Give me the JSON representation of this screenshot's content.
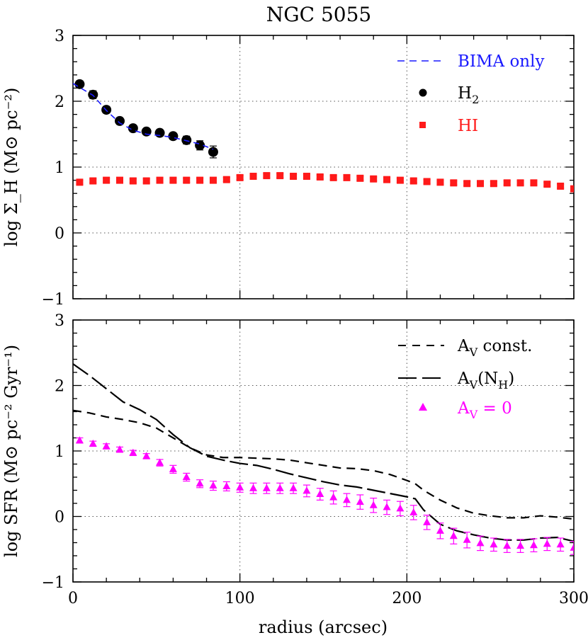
{
  "title": "NGC 5055",
  "xlabel": "radius (arcsec)",
  "colors": {
    "bima": "#1a1aff",
    "h2": "#000000",
    "hi": "#ff1a1a",
    "sfr_av0": "#ff00ff",
    "lines": "#000000"
  },
  "chart_data": [
    {
      "type": "scatter",
      "panel": "top",
      "ylabel": "log Σ_H (M⊙ pc⁻²)",
      "xlim": [
        0,
        300
      ],
      "ylim": [
        -1,
        3
      ],
      "x_ticks": [
        0,
        100,
        200,
        300
      ],
      "y_ticks": [
        -1,
        0,
        1,
        2,
        3
      ],
      "grid": "dotted at x=100,200 and y=0,1,2",
      "legend_position": "top-right",
      "legend": [
        {
          "key": "bima",
          "label": "BIMA only",
          "marker": "dashed-line"
        },
        {
          "key": "h2",
          "label": "H",
          "sub": "2",
          "marker": "circle"
        },
        {
          "key": "hi",
          "label": "HI",
          "marker": "square"
        }
      ],
      "series": [
        {
          "name": "H2",
          "marker": "circle",
          "x": [
            4,
            12,
            20,
            28,
            36,
            44,
            52,
            60,
            68,
            76,
            84
          ],
          "y": [
            2.26,
            2.1,
            1.87,
            1.7,
            1.59,
            1.54,
            1.52,
            1.47,
            1.41,
            1.33,
            1.23
          ],
          "err": [
            0.05,
            0.06,
            0.05,
            0.05,
            0.04,
            0.04,
            0.05,
            0.05,
            0.06,
            0.07,
            0.09
          ]
        },
        {
          "name": "BIMA only",
          "style": "dashed",
          "x": [
            0,
            12,
            20,
            28,
            36,
            44,
            52,
            60,
            68,
            76,
            84
          ],
          "y": [
            2.27,
            2.09,
            1.86,
            1.67,
            1.56,
            1.5,
            1.48,
            1.45,
            1.4,
            1.35,
            1.27
          ]
        },
        {
          "name": "HI",
          "marker": "square",
          "x": [
            4,
            12,
            20,
            28,
            36,
            44,
            52,
            60,
            68,
            76,
            84,
            92,
            100,
            108,
            116,
            124,
            132,
            140,
            148,
            156,
            164,
            172,
            180,
            188,
            196,
            204,
            212,
            220,
            228,
            236,
            244,
            252,
            260,
            268,
            276,
            284,
            292,
            300
          ],
          "y": [
            0.77,
            0.79,
            0.8,
            0.8,
            0.79,
            0.79,
            0.8,
            0.8,
            0.8,
            0.8,
            0.8,
            0.81,
            0.84,
            0.86,
            0.87,
            0.87,
            0.86,
            0.86,
            0.85,
            0.84,
            0.84,
            0.83,
            0.82,
            0.81,
            0.8,
            0.79,
            0.78,
            0.77,
            0.76,
            0.75,
            0.75,
            0.75,
            0.76,
            0.76,
            0.76,
            0.74,
            0.71,
            0.67
          ],
          "err": 0.03
        }
      ]
    },
    {
      "type": "line",
      "panel": "bottom",
      "ylabel": "log SFR (M⊙ pc⁻² Gyr⁻¹)",
      "xlim": [
        0,
        300
      ],
      "ylim": [
        -1,
        3
      ],
      "x_ticks": [
        0,
        100,
        200,
        300
      ],
      "y_ticks": [
        -1,
        0,
        1,
        2,
        3
      ],
      "grid": "dotted at x=100,200 and y=0,1,2",
      "legend_position": "top-right",
      "legend": [
        {
          "key": "av_const",
          "label": "A",
          "sub": "V",
          "tail": " const.",
          "marker": "short-dashed-line"
        },
        {
          "key": "av_nh",
          "label": "A",
          "sub": "V",
          "tail": "(N",
          "sub2": "H",
          "tail2": ")",
          "marker": "long-dashed-line"
        },
        {
          "key": "av0",
          "label": "A",
          "sub": "V",
          "tail": " = 0",
          "marker": "triangle"
        }
      ],
      "series": [
        {
          "name": "AV const.",
          "style": "short-dash",
          "x": [
            0,
            10,
            20,
            30,
            40,
            50,
            60,
            70,
            80,
            90,
            100,
            110,
            120,
            130,
            140,
            150,
            160,
            170,
            180,
            190,
            200,
            205,
            210,
            220,
            230,
            240,
            250,
            260,
            270,
            280,
            290,
            300
          ],
          "y": [
            1.62,
            1.58,
            1.52,
            1.48,
            1.43,
            1.35,
            1.2,
            1.05,
            0.94,
            0.9,
            0.9,
            0.89,
            0.88,
            0.86,
            0.82,
            0.78,
            0.74,
            0.73,
            0.7,
            0.64,
            0.55,
            0.5,
            0.4,
            0.25,
            0.13,
            0.05,
            0.01,
            -0.02,
            -0.02,
            0.01,
            -0.01,
            -0.04
          ]
        },
        {
          "name": "AV(NH)",
          "style": "long-dash",
          "x": [
            0,
            10,
            20,
            30,
            40,
            50,
            60,
            70,
            80,
            90,
            100,
            110,
            120,
            130,
            140,
            150,
            160,
            170,
            180,
            190,
            200,
            205,
            210,
            220,
            230,
            240,
            250,
            260,
            270,
            280,
            290,
            300
          ],
          "y": [
            2.33,
            2.15,
            1.95,
            1.75,
            1.63,
            1.48,
            1.25,
            1.05,
            0.92,
            0.86,
            0.81,
            0.78,
            0.72,
            0.65,
            0.59,
            0.53,
            0.48,
            0.45,
            0.4,
            0.35,
            0.3,
            0.27,
            0.1,
            -0.12,
            -0.22,
            -0.28,
            -0.33,
            -0.36,
            -0.36,
            -0.33,
            -0.32,
            -0.38
          ]
        },
        {
          "name": "AV = 0",
          "marker": "triangle",
          "x": [
            4,
            12,
            20,
            28,
            36,
            44,
            52,
            60,
            68,
            76,
            84,
            92,
            100,
            108,
            116,
            124,
            132,
            140,
            148,
            156,
            164,
            172,
            180,
            188,
            196,
            204,
            212,
            220,
            228,
            236,
            244,
            252,
            260,
            268,
            276,
            284,
            292,
            300
          ],
          "y": [
            1.16,
            1.11,
            1.07,
            1.02,
            0.97,
            0.92,
            0.82,
            0.72,
            0.6,
            0.5,
            0.47,
            0.46,
            0.44,
            0.43,
            0.43,
            0.43,
            0.43,
            0.39,
            0.34,
            0.29,
            0.25,
            0.22,
            0.17,
            0.14,
            0.12,
            0.06,
            -0.09,
            -0.22,
            -0.3,
            -0.36,
            -0.41,
            -0.43,
            -0.45,
            -0.45,
            -0.44,
            -0.42,
            -0.43,
            -0.48
          ],
          "err": [
            0.04,
            0.04,
            0.04,
            0.04,
            0.04,
            0.04,
            0.05,
            0.06,
            0.06,
            0.06,
            0.07,
            0.07,
            0.07,
            0.08,
            0.08,
            0.08,
            0.08,
            0.09,
            0.09,
            0.1,
            0.1,
            0.11,
            0.11,
            0.11,
            0.11,
            0.11,
            0.11,
            0.12,
            0.12,
            0.12,
            0.11,
            0.1,
            0.1,
            0.1,
            0.1,
            0.1,
            0.1,
            0.1
          ]
        }
      ]
    }
  ]
}
